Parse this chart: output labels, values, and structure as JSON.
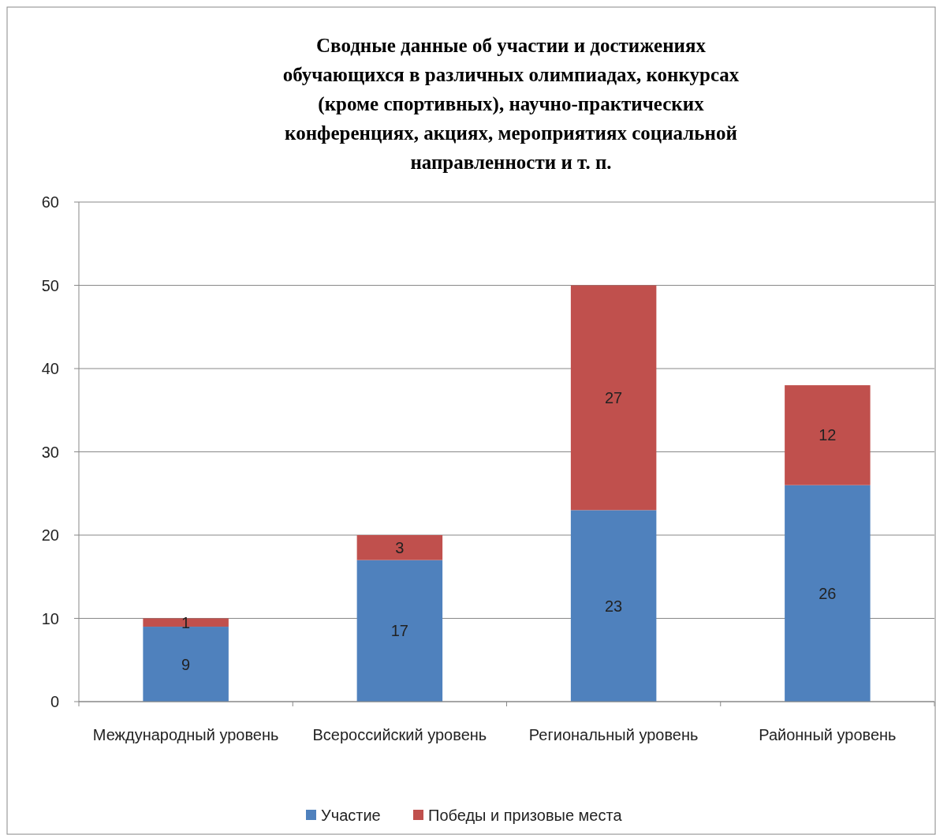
{
  "chart_data": {
    "type": "bar",
    "title": "Сводные данные об участии и достижениях обучающихся в различных олимпиадах, конкурсах (кроме спортивных), научно-практических конференциях, акциях, мероприятиях социальной направленности и т. п.",
    "categories": [
      "Международный уровень",
      "Всероссийский уровень",
      "Региональный уровень",
      "Районный уровень"
    ],
    "series": [
      {
        "name": "Участие",
        "color": "#4f81bd",
        "values": [
          9,
          17,
          23,
          26
        ]
      },
      {
        "name": "Победы и призовые места",
        "color": "#c0504d",
        "values": [
          1,
          3,
          27,
          12
        ]
      }
    ],
    "stacked": true,
    "ylim": [
      0,
      60
    ],
    "yticks": [
      0,
      10,
      20,
      30,
      40,
      50,
      60
    ],
    "grid": "y",
    "legend": "bottom",
    "data_labels": true
  }
}
